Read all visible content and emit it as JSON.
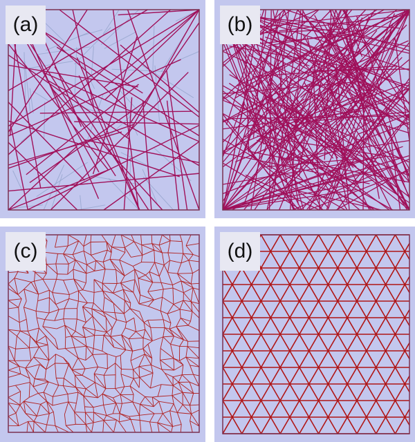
{
  "panels": [
    {
      "id": "a",
      "label": "(a)",
      "content": "sparse-random-sticks",
      "stroke_color": "#a0105a",
      "faint_color": "#8fa0c8",
      "border_color": "#7a3050"
    },
    {
      "id": "b",
      "label": "(b)",
      "content": "dense-random-sticks",
      "stroke_color": "#a0105a",
      "border_color": "#7a3050"
    },
    {
      "id": "c",
      "label": "(c)",
      "content": "voronoi-cell-network",
      "stroke_color": "#b02020",
      "border_color": "#7a3050"
    },
    {
      "id": "d",
      "label": "(d)",
      "content": "triangular-lattice",
      "stroke_color": "#b01515",
      "border_color": "#7a3050"
    }
  ],
  "background_color": "#c3c7ee"
}
